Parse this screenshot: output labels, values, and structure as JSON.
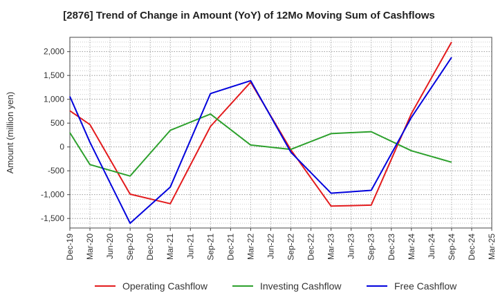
{
  "chart_data": {
    "type": "line",
    "title": "[2876]  Trend of Change in Amount (YoY) of 12Mo Moving Sum of Cashflows",
    "xlabel": "",
    "ylabel": "Amount (million yen)",
    "categories": [
      "Dec-19",
      "Mar-20",
      "Jun-20",
      "Sep-20",
      "Dec-20",
      "Mar-21",
      "Jun-21",
      "Sep-21",
      "Dec-21",
      "Mar-22",
      "Jun-22",
      "Sep-22",
      "Dec-22",
      "Mar-23",
      "Jun-23",
      "Sep-23",
      "Dec-23",
      "Mar-24",
      "Jun-24",
      "Sep-24",
      "Dec-24",
      "Mar-25"
    ],
    "ylim": [
      -1700,
      2300
    ],
    "yticks": [
      -1500,
      -1000,
      -500,
      0,
      500,
      1000,
      1500,
      2000
    ],
    "ytick_labels": [
      "-1,500",
      "-1,000",
      "-500",
      "0",
      "500",
      "1,000",
      "1,500",
      "2,000"
    ],
    "grid": true,
    "legend_position": "bottom",
    "series": [
      {
        "name": "Operating Cashflow",
        "color": "#e31a1c",
        "values": [
          760,
          470,
          null,
          -990,
          null,
          -1190,
          null,
          430,
          null,
          1360,
          null,
          -60,
          null,
          -1240,
          null,
          -1220,
          null,
          700,
          null,
          2200,
          null,
          null
        ]
      },
      {
        "name": "Investing Cashflow",
        "color": "#2ca02c",
        "values": [
          300,
          -370,
          null,
          -610,
          null,
          350,
          null,
          690,
          null,
          40,
          null,
          -50,
          null,
          280,
          null,
          320,
          null,
          -80,
          null,
          -320,
          null,
          null
        ]
      },
      {
        "name": "Free Cashflow",
        "color": "#0000dd",
        "values": [
          1060,
          100,
          null,
          -1600,
          null,
          -840,
          null,
          1120,
          null,
          1390,
          null,
          -110,
          null,
          -970,
          null,
          -910,
          null,
          620,
          null,
          1880,
          null,
          null
        ]
      }
    ]
  }
}
